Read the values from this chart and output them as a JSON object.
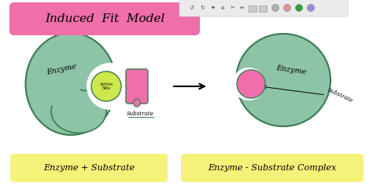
{
  "bg_color": "#ffffff",
  "title_text": "Induced  Fit  Model",
  "title_bg": "#f06eaa",
  "enzyme_left_color": "#8dc4a8",
  "enzyme_right_color": "#8dc4a8",
  "active_site_color": "#cde84a",
  "substrate_color": "#f06eaa",
  "label_enzyme_left": "Enzyme",
  "label_enzyme_right": "Enzyme",
  "label_active_site": "Active\nSite",
  "label_substrate_left": "Substrate",
  "label_substrate_right": "Substrate",
  "bottom_left_text": "Enzyme + Substrate",
  "bottom_right_text": "Enzyme - Substrate Complex",
  "bottom_bg": "#f5f27a",
  "line_color": "#3a7a50",
  "toolbar_bg": "#ebebeb"
}
